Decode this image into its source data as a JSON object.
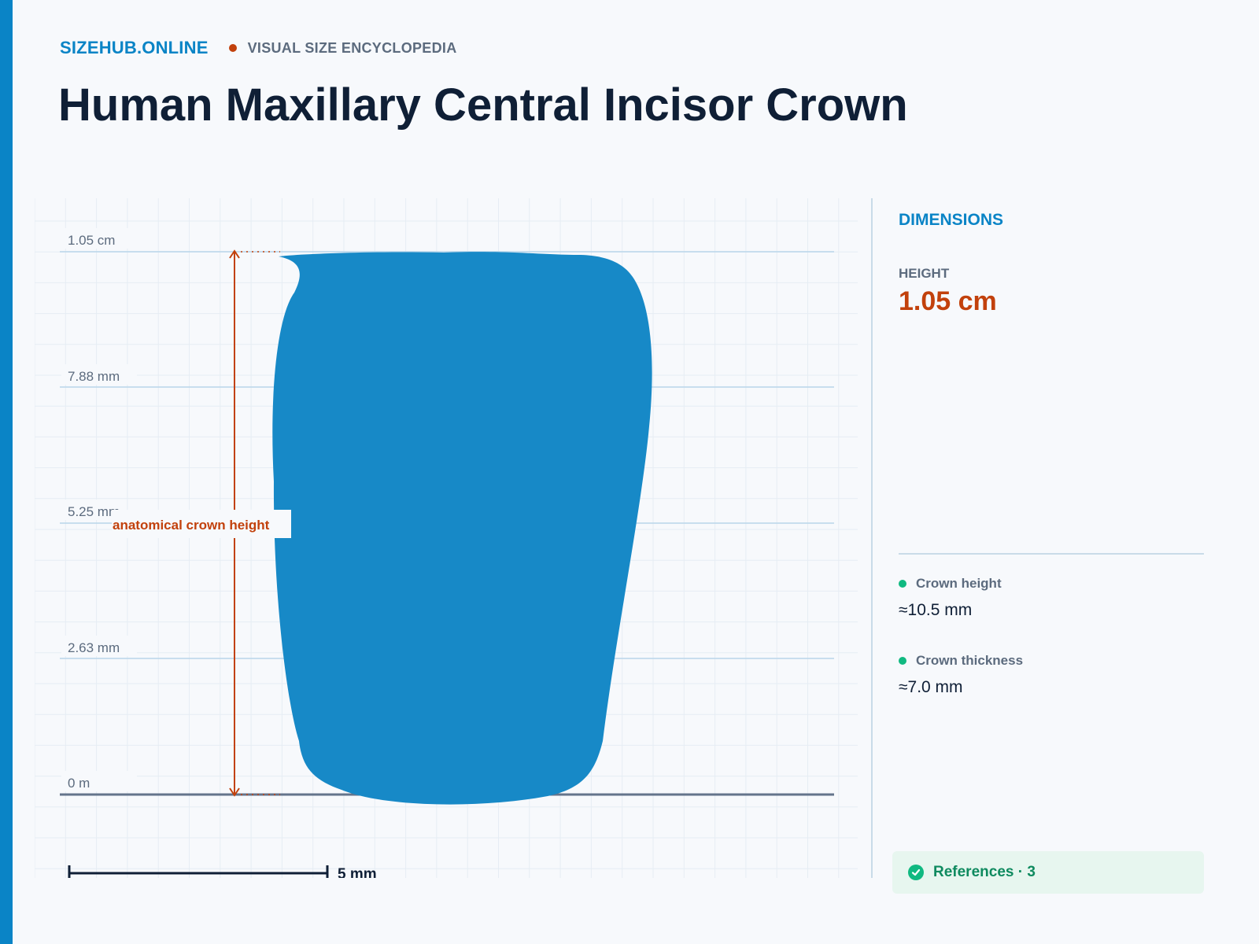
{
  "header": {
    "site_name": "SIZEHUB.ONLINE",
    "tagline": "VISUAL SIZE ENCYCLOPEDIA"
  },
  "page_title": "Human Maxillary Central Incisor Crown",
  "diagram": {
    "y_axis_ticks": [
      "1.05 cm",
      "7.88 mm",
      "5.25 mm",
      "2.63 mm",
      "0 m"
    ],
    "measure_label": "anatomical crown height",
    "scale_bar_label": "5 mm",
    "colors": {
      "shape": "#1789c7",
      "measure": "#c2410c",
      "grid": "#e6edf4",
      "tick_line": "#b9d6ea",
      "baseline": "#64748b"
    }
  },
  "sidebar": {
    "heading": "DIMENSIONS",
    "height_label": "HEIGHT",
    "height_value": "1.05 cm",
    "metrics": [
      {
        "name": "Crown height",
        "value": "≈10.5 mm"
      },
      {
        "name": "Crown thickness",
        "value": "≈7.0 mm"
      }
    ],
    "references_label": "References · 3",
    "references_icon": "check-circle-icon"
  },
  "colors": {
    "accent": "#0a84c6",
    "highlight": "#c2410c",
    "status_green": "#10b981"
  }
}
